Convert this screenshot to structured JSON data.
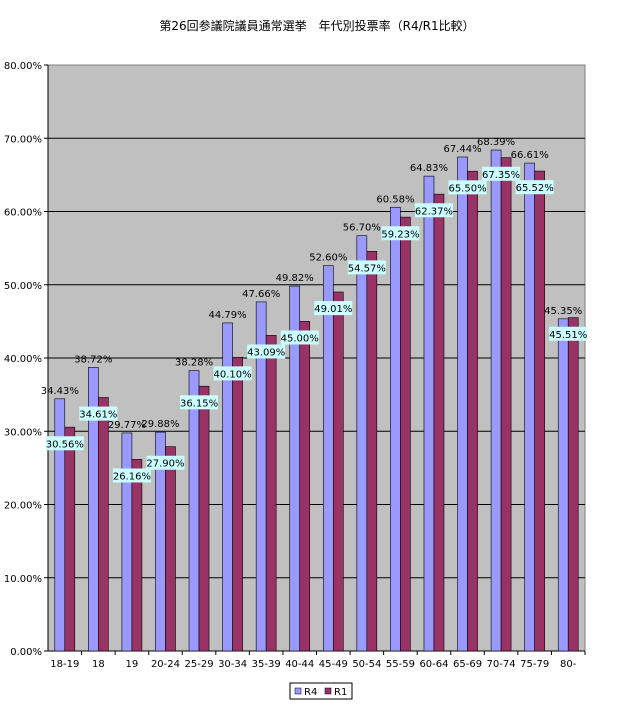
{
  "chart_data": {
    "type": "bar",
    "title": "第26回参議院議員通常選挙　年代別投票率（R4/R1比較）",
    "xlabel": "",
    "ylabel": "",
    "ylim": [
      0,
      80
    ],
    "ytick_step": 10,
    "ytick_labels": [
      "0.00%",
      "10.00%",
      "20.00%",
      "30.00%",
      "40.00%",
      "50.00%",
      "60.00%",
      "70.00%",
      "80.00%"
    ],
    "grid": true,
    "legend_position": "bottom",
    "categories": [
      "18-19",
      "18",
      "19",
      "20-24",
      "25-29",
      "30-34",
      "35-39",
      "40-44",
      "45-49",
      "50-54",
      "55-59",
      "60-64",
      "65-69",
      "70-74",
      "75-79",
      "80-"
    ],
    "series": [
      {
        "name": "R4",
        "color": "#9999ff",
        "values": [
          34.43,
          38.72,
          29.77,
          29.88,
          38.28,
          44.79,
          47.66,
          49.82,
          52.6,
          56.7,
          60.58,
          64.83,
          67.44,
          68.39,
          66.61,
          45.35
        ],
        "labels": [
          "34.43%",
          "38.72%",
          "29.77%",
          "29.88%",
          "38.28%",
          "44.79%",
          "47.66%",
          "49.82%",
          "52.60%",
          "56.70%",
          "60.58%",
          "64.83%",
          "67.44%",
          "68.39%",
          "66.61%",
          "45.35%"
        ]
      },
      {
        "name": "R1",
        "color": "#993366",
        "values": [
          30.56,
          34.61,
          26.16,
          27.9,
          36.15,
          40.1,
          43.09,
          45.0,
          49.01,
          54.57,
          59.23,
          62.37,
          65.5,
          67.35,
          65.52,
          45.51
        ],
        "labels": [
          "30.56%",
          "34.61%",
          "26.16%",
          "27.90%",
          "36.15%",
          "40.10%",
          "43.09%",
          "45.00%",
          "49.01%",
          "54.57%",
          "59.23%",
          "62.37%",
          "65.50%",
          "67.35%",
          "65.52%",
          "45.51%"
        ]
      }
    ],
    "plot_background": "#c0c0c0",
    "label_box_color": "#ccffff"
  }
}
